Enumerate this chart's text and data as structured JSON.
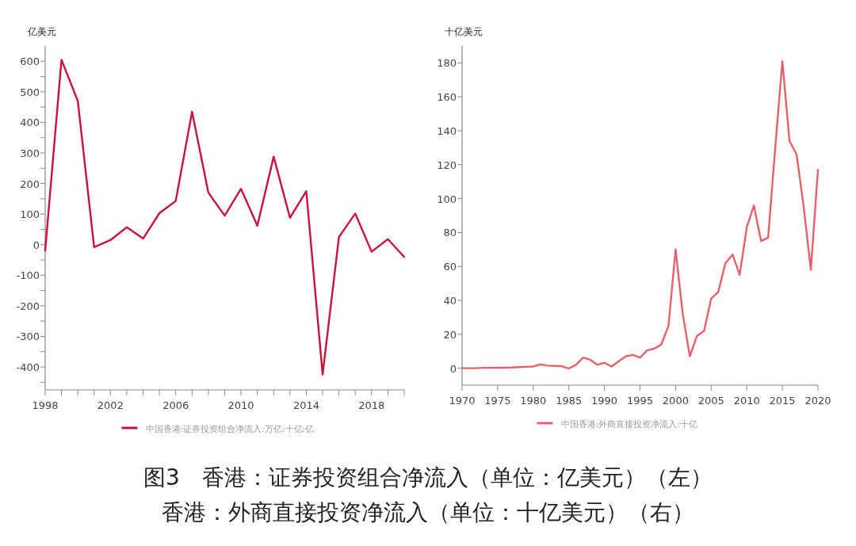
{
  "chart_data": [
    {
      "type": "line",
      "ylabel": "亿美元",
      "x": [
        1998,
        1999,
        2000,
        2001,
        2002,
        2003,
        2004,
        2005,
        2006,
        2007,
        2008,
        2009,
        2010,
        2011,
        2012,
        2013,
        2014,
        2015,
        2016,
        2017,
        2018,
        2019,
        2020
      ],
      "series": [
        {
          "name": "中国香港:证券投资组合净流入:万亿:十亿:亿",
          "color": "#c8143c",
          "values": [
            -20,
            605,
            470,
            -8,
            15,
            57,
            20,
            103,
            143,
            435,
            170,
            95,
            183,
            62,
            288,
            88,
            175,
            -425,
            25,
            102,
            -23,
            18,
            -40
          ]
        }
      ],
      "xlim": [
        1998,
        2020
      ],
      "xticks": [
        1998,
        {
          "value": 1999,
          "label": null
        },
        {
          "value": 2000,
          "label": null
        },
        {
          "value": 2001,
          "label": null
        },
        2002,
        {
          "value": 2003,
          "label": null
        },
        {
          "value": 2004,
          "label": null
        },
        {
          "value": 2005,
          "label": null
        },
        2006,
        {
          "value": 2007,
          "label": null
        },
        {
          "value": 2008,
          "label": null
        },
        {
          "value": 2009,
          "label": null
        },
        2010,
        {
          "value": 2011,
          "label": null
        },
        {
          "value": 2012,
          "label": null
        },
        {
          "value": 2013,
          "label": null
        },
        2014,
        {
          "value": 2015,
          "label": null
        },
        {
          "value": 2016,
          "label": null
        },
        {
          "value": 2017,
          "label": null
        },
        2018,
        {
          "value": 2019,
          "label": null
        },
        {
          "value": 2020,
          "label": null
        }
      ],
      "ylim": [
        -475,
        650
      ],
      "yticks": [
        {
          "value": -450,
          "label": null
        },
        -400,
        {
          "value": -350,
          "label": null
        },
        -300,
        {
          "value": -250,
          "label": null
        },
        -200,
        {
          "value": -150,
          "label": null
        },
        -100,
        {
          "value": -50,
          "label": null
        },
        0,
        {
          "value": 50,
          "label": null
        },
        100,
        {
          "value": 150,
          "label": null
        },
        200,
        {
          "value": 250,
          "label": null
        },
        300,
        {
          "value": 350,
          "label": null
        },
        400,
        {
          "value": 450,
          "label": null
        },
        500,
        {
          "value": 550,
          "label": null
        },
        600
      ],
      "grid": false,
      "legend": "bottom",
      "marker": "none",
      "line_style": "solid",
      "annotations": [
        "图3　香港：证券投资组合净流入（单位：亿美元）（左）",
        "香港：外商直接投资净流入（单位：十亿美元）（右）"
      ]
    },
    {
      "type": "line",
      "ylabel": "十亿美元",
      "x": [
        1970,
        1971,
        1972,
        1973,
        1974,
        1975,
        1976,
        1977,
        1978,
        1979,
        1980,
        1981,
        1982,
        1983,
        1984,
        1985,
        1986,
        1987,
        1988,
        1989,
        1990,
        1991,
        1992,
        1993,
        1994,
        1995,
        1996,
        1997,
        1998,
        1999,
        2000,
        2001,
        2002,
        2003,
        2004,
        2005,
        2006,
        2007,
        2008,
        2009,
        2010,
        2011,
        2012,
        2013,
        2014,
        2015,
        2016,
        2017,
        2018,
        2019,
        2020
      ],
      "series": [
        {
          "name": "中国香港:外商直接投资净流入:十亿",
          "color": "#e8606a",
          "values": [
            0,
            0,
            0,
            0.2,
            0.2,
            0.3,
            0.3,
            0.4,
            0.6,
            0.8,
            1.0,
            2.2,
            1.5,
            1.3,
            1.2,
            -0.2,
            2.0,
            6.2,
            5.0,
            2.0,
            3.2,
            1.0,
            4.0,
            7.0,
            7.8,
            6.2,
            10.5,
            11.5,
            14,
            25,
            70,
            32,
            7,
            19,
            22,
            41,
            45,
            62,
            67,
            55,
            83,
            96,
            75,
            77,
            130,
            181,
            134,
            126,
            95,
            58,
            117
          ]
        }
      ],
      "xlim": [
        1970,
        2020
      ],
      "xticks": [
        1970,
        1975,
        1980,
        1985,
        1990,
        1995,
        2000,
        2005,
        2010,
        2015,
        2020
      ],
      "ylim": [
        -10,
        190
      ],
      "yticks": [
        0,
        20,
        40,
        60,
        80,
        100,
        120,
        140,
        160,
        180
      ],
      "grid": false,
      "legend": "bottom",
      "marker": "none",
      "line_style": "solid"
    }
  ]
}
